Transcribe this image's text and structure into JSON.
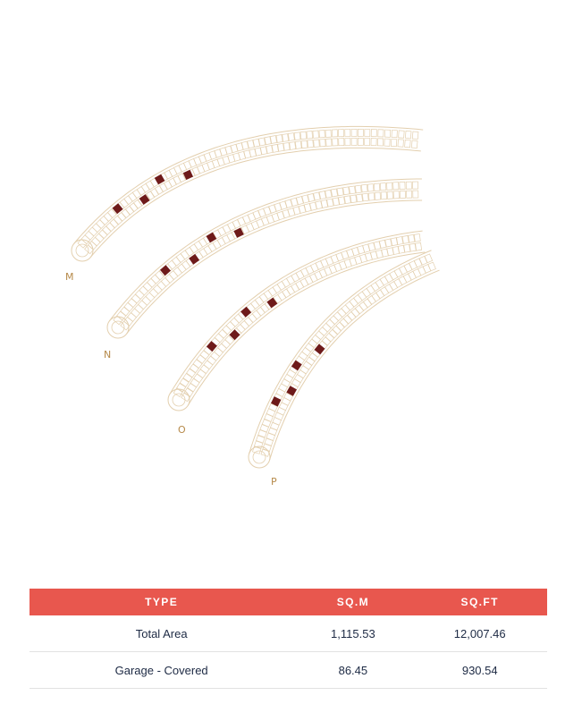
{
  "plan": {
    "colors": {
      "outline": "#e3cfae",
      "highlight": "#6e1a1a",
      "label": "#b68a4a"
    },
    "rows": [
      {
        "label": "M",
        "highlighted_units": 4
      },
      {
        "label": "N",
        "highlighted_units": 4
      },
      {
        "label": "O",
        "highlighted_units": 4
      },
      {
        "label": "P",
        "highlighted_units": 4
      }
    ]
  },
  "table": {
    "header_color": "#e8574e",
    "headers": {
      "type": "TYPE",
      "sqm": "SQ.M",
      "sqft": "SQ.FT"
    },
    "rows": [
      {
        "type": "Total Area",
        "sqm": "1,115.53",
        "sqft": "12,007.46"
      },
      {
        "type": "Garage - Covered",
        "sqm": "86.45",
        "sqft": "930.54"
      }
    ]
  }
}
